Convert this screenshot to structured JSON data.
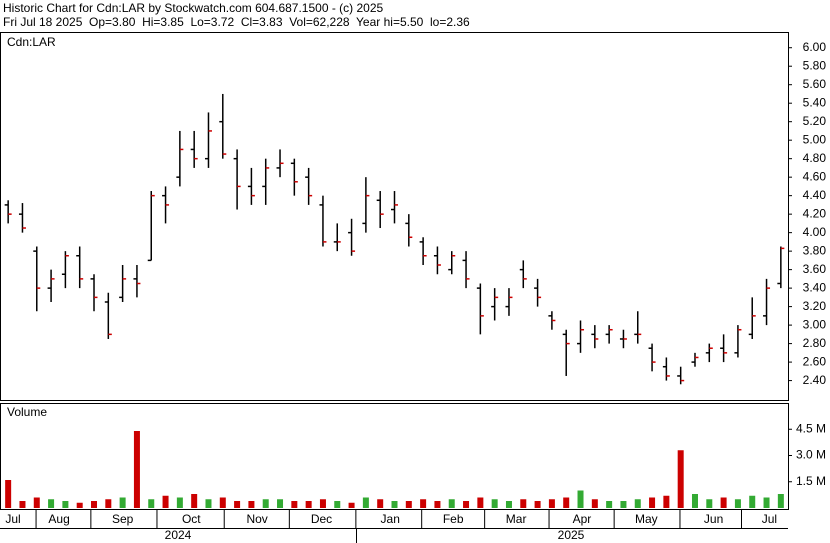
{
  "header": {
    "title": "Historic Chart for Cdn:LAR by Stockwatch.com 604.687.1500 - (c) 2025",
    "summary": "Fri Jul 18 2025  Op=3.80  Hi=3.85  Lo=3.72  Cl=3.83  Vol=62,228  Year hi=5.50  lo=2.36"
  },
  "years": [
    "2024",
    "2025"
  ],
  "chart_data": [
    {
      "type": "ohlc",
      "title": "Cdn:LAR",
      "bar_color": "#000000",
      "close_color": "#cc0000",
      "categories": [
        null,
        null,
        null,
        null,
        null,
        null,
        null,
        null,
        null,
        null,
        null,
        null,
        null,
        null,
        null,
        null,
        null,
        null,
        null,
        null,
        null,
        null,
        null,
        null,
        null,
        null,
        null,
        null,
        null,
        null,
        null,
        null,
        null,
        null,
        null,
        null,
        null,
        null,
        null,
        null,
        null,
        null,
        null,
        null,
        null,
        null,
        null,
        null,
        null,
        null,
        null,
        null,
        null,
        null,
        null
      ],
      "open": [
        4.3,
        4.2,
        3.8,
        3.4,
        3.55,
        3.75,
        3.5,
        3.25,
        3.3,
        3.5,
        3.7,
        4.4,
        4.6,
        4.9,
        4.8,
        5.2,
        4.8,
        4.5,
        4.5,
        4.7,
        4.75,
        4.6,
        4.3,
        3.9,
        4.0,
        4.1,
        4.35,
        4.25,
        4.1,
        3.9,
        3.75,
        3.6,
        3.7,
        3.4,
        3.2,
        3.2,
        3.6,
        3.4,
        3.1,
        2.9,
        2.8,
        2.9,
        2.9,
        2.85,
        2.9,
        2.75,
        2.55,
        2.45,
        2.6,
        2.7,
        2.75,
        2.7,
        2.9,
        3.1,
        3.45
      ],
      "high": [
        4.35,
        4.32,
        3.85,
        3.6,
        3.8,
        3.85,
        3.55,
        3.35,
        3.65,
        3.65,
        4.45,
        4.5,
        5.1,
        5.1,
        5.3,
        5.5,
        4.9,
        4.7,
        4.8,
        4.9,
        4.8,
        4.7,
        4.4,
        4.1,
        4.15,
        4.6,
        4.45,
        4.45,
        4.2,
        3.95,
        3.85,
        3.8,
        3.8,
        3.45,
        3.4,
        3.4,
        3.7,
        3.5,
        3.15,
        2.95,
        3.05,
        3.0,
        3.0,
        2.95,
        3.15,
        2.8,
        2.65,
        2.55,
        2.7,
        2.8,
        2.9,
        3.0,
        3.3,
        3.5,
        3.85
      ],
      "low": [
        4.1,
        4.0,
        3.15,
        3.25,
        3.4,
        3.4,
        3.15,
        2.85,
        3.25,
        3.3,
        3.7,
        4.1,
        4.5,
        4.7,
        4.7,
        4.8,
        4.25,
        4.3,
        4.3,
        4.6,
        4.4,
        4.3,
        3.85,
        3.8,
        3.75,
        4.0,
        4.05,
        4.1,
        3.85,
        3.65,
        3.55,
        3.55,
        3.4,
        2.9,
        3.05,
        3.1,
        3.4,
        3.2,
        2.95,
        2.45,
        2.7,
        2.75,
        2.8,
        2.75,
        2.8,
        2.5,
        2.4,
        2.36,
        2.55,
        2.6,
        2.6,
        2.65,
        2.85,
        3.0,
        3.4
      ],
      "close": [
        4.2,
        4.05,
        3.4,
        3.5,
        3.75,
        3.5,
        3.3,
        2.9,
        3.5,
        3.45,
        4.4,
        4.3,
        4.9,
        4.8,
        5.1,
        4.85,
        4.5,
        4.4,
        4.7,
        4.75,
        4.55,
        4.4,
        3.9,
        3.9,
        3.8,
        4.4,
        4.2,
        4.3,
        3.95,
        3.75,
        3.65,
        3.75,
        3.5,
        3.1,
        3.3,
        3.3,
        3.5,
        3.3,
        3.05,
        2.8,
        2.95,
        2.85,
        2.95,
        2.85,
        2.9,
        2.6,
        2.45,
        2.4,
        2.65,
        2.75,
        2.7,
        2.95,
        3.1,
        3.4,
        3.83
      ],
      "ylim": [
        2.19,
        6.17
      ],
      "yticks": [
        {
          "value": 2.4,
          "label": "2.40"
        },
        {
          "value": 2.6,
          "label": "2.60"
        },
        {
          "value": 2.8,
          "label": "2.80"
        },
        {
          "value": 3.0,
          "label": "3.00"
        },
        {
          "value": 3.2,
          "label": "3.20"
        },
        {
          "value": 3.4,
          "label": "3.40"
        },
        {
          "value": 3.6,
          "label": "3.60"
        },
        {
          "value": 3.8,
          "label": "3.80"
        },
        {
          "value": 4.0,
          "label": "4.00"
        },
        {
          "value": 4.2,
          "label": "4.20"
        },
        {
          "value": 4.4,
          "label": "4.40"
        },
        {
          "value": 4.6,
          "label": "4.60"
        },
        {
          "value": 4.8,
          "label": "4.80"
        },
        {
          "value": 5.0,
          "label": "5.00"
        },
        {
          "value": 5.2,
          "label": "5.20"
        },
        {
          "value": 5.4,
          "label": "5.40"
        },
        {
          "value": 5.6,
          "label": "5.60"
        },
        {
          "value": 5.8,
          "label": "5.80"
        },
        {
          "value": 6.0,
          "label": "6.00"
        }
      ],
      "xticks": [
        {
          "value": 0.84,
          "label": "Jul"
        },
        {
          "value": 4.06,
          "label": "Aug"
        },
        {
          "value": 8.5,
          "label": "Sep"
        },
        {
          "value": 13.3,
          "label": "Oct"
        },
        {
          "value": 17.9,
          "label": "Nov"
        },
        {
          "value": 22.4,
          "label": "Dec"
        },
        {
          "value": 27.2,
          "label": "Jan"
        },
        {
          "value": 31.6,
          "label": "Feb"
        },
        {
          "value": 36.0,
          "label": "Mar"
        },
        {
          "value": 40.6,
          "label": "Apr"
        },
        {
          "value": 45.1,
          "label": "May"
        },
        {
          "value": 49.8,
          "label": "Jun"
        },
        {
          "value": 53.7,
          "label": "Jul"
        }
      ]
    },
    {
      "type": "bar",
      "title": "Volume",
      "up_color": "#33aa33",
      "down_color": "#cc0000",
      "values": [
        1.6,
        0.4,
        0.6,
        0.5,
        0.4,
        0.3,
        0.4,
        0.5,
        0.6,
        4.4,
        0.5,
        0.7,
        0.6,
        0.8,
        0.5,
        0.6,
        0.4,
        0.4,
        0.5,
        0.5,
        0.4,
        0.4,
        0.5,
        0.4,
        0.3,
        0.6,
        0.5,
        0.4,
        0.4,
        0.5,
        0.4,
        0.5,
        0.4,
        0.6,
        0.5,
        0.4,
        0.5,
        0.4,
        0.5,
        0.6,
        1.0,
        0.5,
        0.4,
        0.4,
        0.5,
        0.6,
        0.7,
        3.3,
        0.8,
        0.5,
        0.6,
        0.5,
        0.7,
        0.6,
        0.8
      ],
      "ylim": [
        0,
        6.0
      ],
      "yticks": [
        {
          "value": 1.5,
          "label": "1.5 M"
        },
        {
          "value": 3.0,
          "label": "3.0 M"
        },
        {
          "value": 4.5,
          "label": "4.5 M"
        }
      ]
    }
  ]
}
